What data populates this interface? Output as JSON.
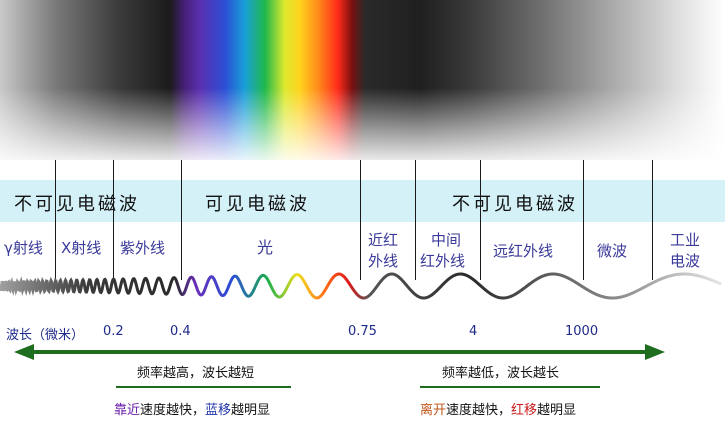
{
  "colors": {
    "band": "#d5f1f8",
    "arrow": "#1f6e1f",
    "text": "#1e2a8a",
    "wave_start": "#888888",
    "purple": "#6a1fa8",
    "blue": "#1e33a8",
    "orange": "#c0571a",
    "red": "#c81b1b"
  },
  "categories": [
    {
      "text": "不可见电磁波"
    },
    {
      "text": "可见电磁波"
    },
    {
      "text": "不可见电磁波"
    }
  ],
  "bands": [
    {
      "line1": "γ射线"
    },
    {
      "line1": "X射线"
    },
    {
      "line1": "紫外线"
    },
    {
      "line1": "光"
    },
    {
      "line1": "近红",
      "line2": "外线"
    },
    {
      "line1": "中间",
      "line2": "红外线"
    },
    {
      "line1": "远红外线"
    },
    {
      "line1": "微波"
    },
    {
      "line1": "工业",
      "line2": "电波"
    }
  ],
  "wavelength": {
    "label": "波长（微米）",
    "ticks": [
      "0.2",
      "0.4",
      "0.75",
      "4",
      "1000"
    ]
  },
  "notes": {
    "left": {
      "line1": "频率越高，波长越短",
      "approach": "靠近",
      "speed_faster": "速度越快，",
      "blueshift": "蓝移",
      "more_obvious": "越明显"
    },
    "right": {
      "line1": "频率越低，波长越长",
      "recede": "离开",
      "speed_faster": "速度越快，",
      "redshift": "红移",
      "more_obvious": "越明显"
    }
  }
}
